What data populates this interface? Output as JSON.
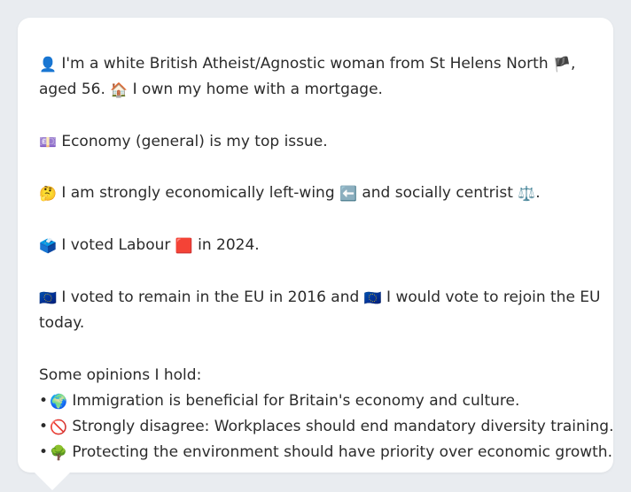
{
  "profile": {
    "line1": {
      "icon": "👤",
      "text_a": " I'm a white British Atheist/Agnostic woman from St Helens North ",
      "flag": "🏴",
      "text_b": ","
    },
    "line2": {
      "text_a": "aged 56. ",
      "icon": "🏠",
      "text_b": " I own my home with a mortgage."
    },
    "issue": {
      "icon": "💷",
      "text": " Economy (general) is my top issue."
    },
    "ideology": {
      "icon": "🤔",
      "text_a": " I am strongly economically left-wing ",
      "left_icon": "⬅️",
      "text_b": " and socially centrist ",
      "scale_icon": "⚖️",
      "text_c": "."
    },
    "vote": {
      "icon": "🗳️",
      "text_a": " I voted Labour ",
      "party_icon": "🟥",
      "text_b": " in 2024."
    },
    "eu": {
      "icon1": "🇪🇺",
      "text_a": " I voted to remain in the EU in 2016 and ",
      "icon2": "🇪🇺",
      "text_b": " I would vote to rejoin the EU",
      "text_c": "today."
    },
    "opinions_heading": "Some opinions I hold:",
    "opinions": [
      {
        "bullet": "•",
        "icon": "🌍",
        "text": " Immigration is beneficial for Britain's economy and culture."
      },
      {
        "bullet": "•",
        "icon": "🚫",
        "text": " Strongly disagree: Workplaces should end mandatory diversity training."
      },
      {
        "bullet": "•",
        "icon": "🌳",
        "text": " Protecting the environment should have priority over economic growth."
      }
    ]
  },
  "colors": {
    "background": "#e9ecf0",
    "card": "#ffffff",
    "text": "#2b2b2b"
  }
}
